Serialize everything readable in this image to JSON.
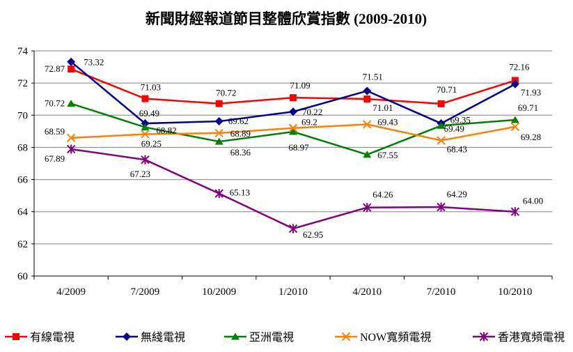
{
  "title": "新聞財經報道節目整體欣賞指數 (2009-2010)",
  "chart_data": {
    "type": "line",
    "title": "新聞財經報道節目整體欣賞指數 (2009-2010)",
    "categories": [
      "4/2009",
      "7/2009",
      "10/2009",
      "1/2010",
      "4/2010",
      "7/2010",
      "10/2010"
    ],
    "series": [
      {
        "name": "有線電視",
        "color": "#FF0000",
        "marker": "square",
        "values": [
          72.87,
          71.03,
          70.72,
          71.09,
          71.01,
          70.71,
          72.16
        ],
        "labels": [
          "72.87",
          "71.03",
          "70.72",
          "71.09",
          "71.01",
          "70.71",
          "72.16"
        ],
        "label_pos": [
          [
            -9,
            4,
            "e"
          ],
          [
            8,
            -12,
            "m"
          ],
          [
            10,
            -11,
            "m"
          ],
          [
            10,
            -13,
            "m"
          ],
          [
            8,
            17,
            "s"
          ],
          [
            8,
            -16,
            "m"
          ],
          [
            6,
            -15,
            "m"
          ]
        ]
      },
      {
        "name": "無綫電視",
        "color": "#00008B",
        "marker": "diamond",
        "values": [
          73.32,
          69.49,
          69.62,
          70.22,
          71.51,
          69.49,
          71.93
        ],
        "labels": [
          "73.32",
          "69.49",
          "69.62",
          "70.22",
          "71.51",
          "69.49",
          "71.93"
        ],
        "label_pos": [
          [
            18,
            5,
            "s"
          ],
          [
            6,
            -10,
            "m"
          ],
          [
            13,
            4,
            "s"
          ],
          [
            13,
            5,
            "s"
          ],
          [
            8,
            -16,
            "m"
          ],
          [
            4,
            12,
            "s"
          ],
          [
            8,
            16,
            "s"
          ]
        ]
      },
      {
        "name": "亞洲電視",
        "color": "#008000",
        "marker": "triangle",
        "values": [
          70.72,
          69.25,
          68.36,
          68.97,
          67.55,
          69.35,
          69.71
        ],
        "labels": [
          "70.72",
          "69.25",
          "68.36",
          "68.97",
          "67.55",
          "69.35",
          "69.71"
        ],
        "label_pos": [
          [
            -9,
            4,
            "e"
          ],
          [
            9,
            28,
            "m"
          ],
          [
            16,
            20,
            "s"
          ],
          [
            8,
            27,
            "m"
          ],
          [
            15,
            5,
            "s"
          ],
          [
            13,
            -4,
            "s"
          ],
          [
            4,
            -13,
            "s"
          ]
        ]
      },
      {
        "name": "NOW寬頻電視",
        "color": "#FF8000",
        "marker": "x",
        "values": [
          68.59,
          68.82,
          68.89,
          69.2,
          69.43,
          68.43,
          69.28
        ],
        "labels": [
          "68.59",
          "68.82",
          "68.89",
          "69.2",
          "69.43",
          "68.43",
          "69.28"
        ],
        "label_pos": [
          [
            -9,
            -5,
            "e"
          ],
          [
            16,
            -1,
            "s"
          ],
          [
            16,
            5,
            "s"
          ],
          [
            12,
            -4,
            "s"
          ],
          [
            15,
            1,
            "s"
          ],
          [
            8,
            17,
            "s"
          ],
          [
            8,
            19,
            "s"
          ]
        ]
      },
      {
        "name": "香港寬頻電視",
        "color": "#800080",
        "marker": "star",
        "values": [
          67.89,
          67.23,
          65.13,
          62.95,
          64.26,
          64.29,
          64.0
        ],
        "labels": [
          "67.89",
          "67.23",
          "65.13",
          "62.95",
          "64.26",
          "64.29",
          "64.00"
        ],
        "label_pos": [
          [
            -9,
            18,
            "e"
          ],
          [
            -7,
            25,
            "m"
          ],
          [
            15,
            3,
            "s"
          ],
          [
            14,
            13,
            "s"
          ],
          [
            8,
            -14,
            "s"
          ],
          [
            8,
            -14,
            "s"
          ],
          [
            11,
            -11,
            "s"
          ]
        ]
      }
    ],
    "xlabel": "",
    "ylabel": "",
    "ylim": [
      60,
      74
    ],
    "yticks": [
      60,
      62,
      64,
      66,
      68,
      70,
      72,
      74
    ],
    "grid": "horizontal",
    "gridline_color": "#808080",
    "legend_position": "bottom"
  }
}
